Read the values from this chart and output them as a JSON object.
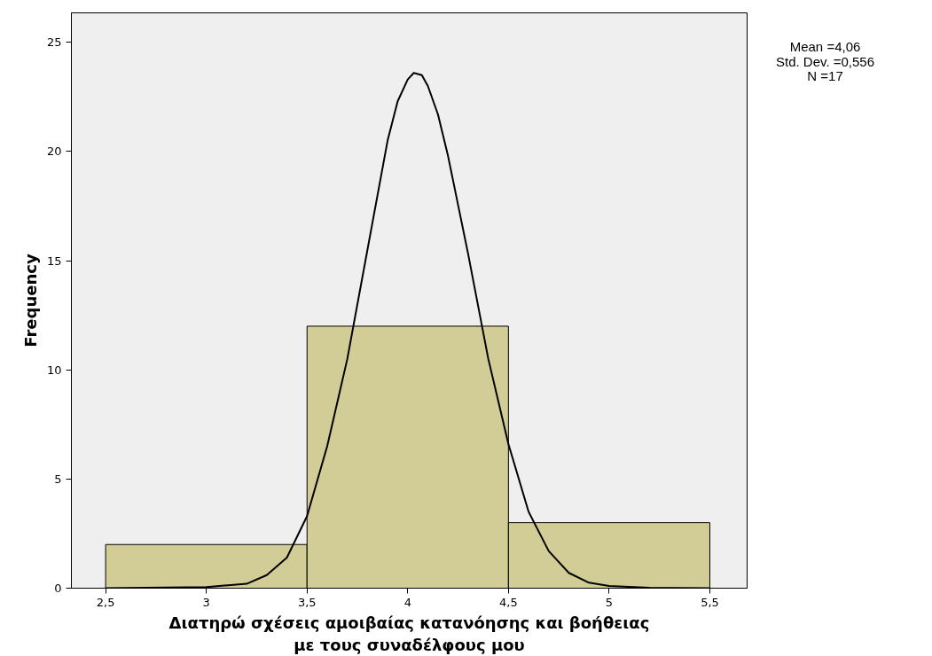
{
  "chart_data": {
    "type": "histogram",
    "xlabel": "Διατηρώ σχέσεις αμοιβαίας κατανόησης και βοήθειας\nμε τους συναδέλφους μου",
    "ylabel": "Frequency",
    "bins": [
      2.5,
      3.5,
      4.5,
      5.5
    ],
    "values": [
      2,
      12,
      3
    ],
    "color": "#d2cd96",
    "series": [
      {
        "type": "line",
        "color": "#000000",
        "x": [
          2.5,
          3.0,
          3.2,
          3.3,
          3.4,
          3.5,
          3.6,
          3.7,
          3.8,
          3.9,
          3.95,
          4.0,
          4.03,
          4.07,
          4.1,
          4.15,
          4.2,
          4.3,
          4.4,
          4.5,
          4.6,
          4.7,
          4.8,
          4.9,
          5.0,
          5.2,
          5.5
        ],
        "values": [
          0,
          0.05,
          0.2,
          0.6,
          1.4,
          3.3,
          6.5,
          10.5,
          15.5,
          20.5,
          22.3,
          23.3,
          23.6,
          23.5,
          23,
          21.7,
          19.8,
          15.3,
          10.5,
          6.6,
          3.5,
          1.7,
          0.7,
          0.25,
          0.1,
          0.02,
          0
        ]
      }
    ],
    "xlim": [
      2.33,
      5.685
    ],
    "ylim": [
      0,
      26.35
    ],
    "xticks": [
      {
        "value": 2.5,
        "label": "2,5"
      },
      3,
      {
        "value": 3.5,
        "label": "3,5"
      },
      4,
      {
        "value": 4.5,
        "label": "4,5"
      },
      5,
      {
        "value": 5.5,
        "label": "5,5"
      }
    ],
    "yticks": [
      0,
      5,
      10,
      15,
      20,
      25
    ],
    "annotations": [
      "Mean =4,06\nStd. Dev. =0,556\nN =17"
    ],
    "grid": false
  }
}
